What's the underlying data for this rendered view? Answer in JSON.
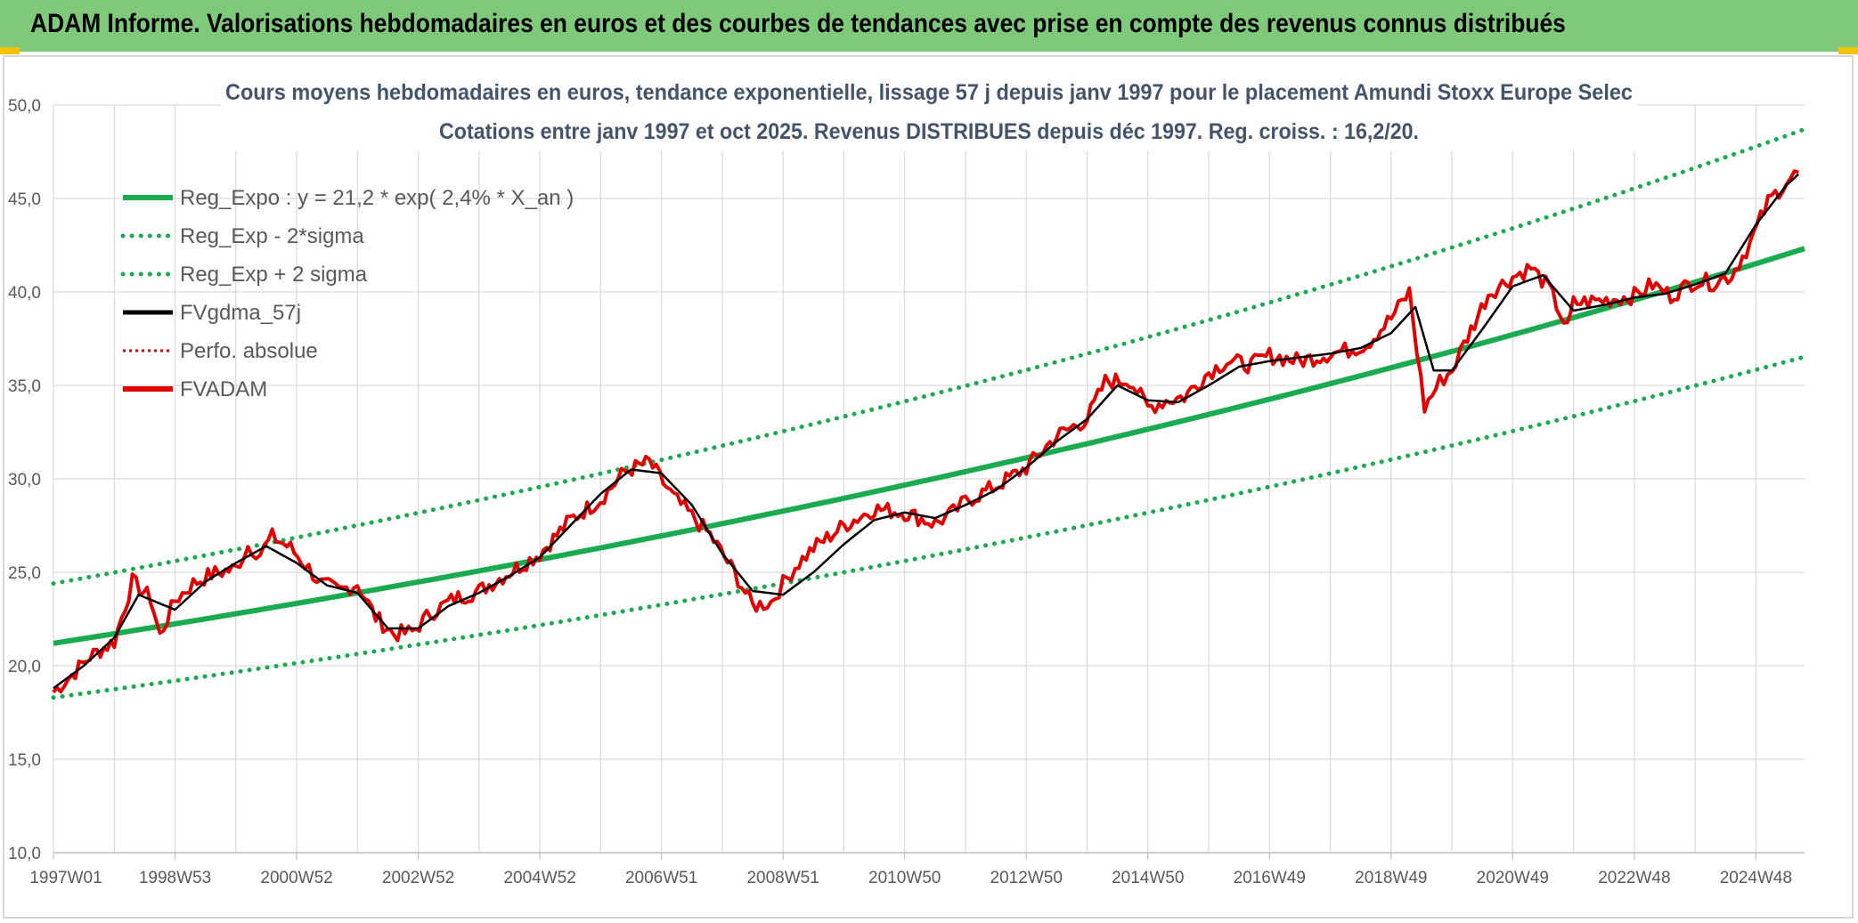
{
  "header": {
    "title": "ADAM Informe. Valorisations hebdomadaires en euros et des courbes de tendances avec prise en compte des revenus connus distribués"
  },
  "colors": {
    "header_bg": "#7ec97a",
    "reg_expo": "#1aaa50",
    "sigma": "#1aaa50",
    "fvgdma": "#000000",
    "perfo": "#e00000",
    "fvadam": "#e00000",
    "grid": "#d9d9d9",
    "title": "#44546a",
    "axis_text": "#595959"
  },
  "chart_data": {
    "type": "line",
    "title": "Cours moyens hebdomadaires en euros, tendance exponentielle, lissage 57 j depuis janv 1997 pour le placement Amundi Stoxx Europe Selec",
    "subtitle": "Cotations entre janv 1997 et oct 2025. Revenus DISTRIBUES depuis déc 1997. Reg. croiss. : 16,2/20.",
    "xlabel": "",
    "ylabel": "",
    "xlim": [
      1997.0,
      2025.8
    ],
    "ylim": [
      10,
      50
    ],
    "yticks": [
      10,
      15,
      20,
      25,
      30,
      35,
      40,
      45,
      50
    ],
    "ytick_labels": [
      "10,0",
      "15,0",
      "20,0",
      "25,0",
      "30,0",
      "35,0",
      "40,0",
      "45,0",
      "50,0"
    ],
    "xticks": [
      1997.0,
      1999.0,
      2001.0,
      2003.0,
      2005.0,
      2007.0,
      2009.0,
      2011.0,
      2013.0,
      2015.0,
      2017.0,
      2019.0,
      2021.0,
      2023.0,
      2025.0
    ],
    "xtick_labels": [
      "1997W01",
      "1998W53",
      "2000W52",
      "2002W52",
      "2004W52",
      "2006W51",
      "2008W51",
      "2010W50",
      "2012W50",
      "2014W50",
      "2016W49",
      "2018W49",
      "2020W49",
      "2022W48",
      "2024W48"
    ],
    "legend_position": "top-left",
    "legend": [
      {
        "label": "Reg_Expo : y = 21,2 * exp( 2,4% *  X_an )",
        "style": "solid",
        "color_key": "reg_expo"
      },
      {
        "label": "Reg_Exp - 2*sigma",
        "style": "dotted",
        "color_key": "sigma"
      },
      {
        "label": "Reg_Exp + 2 sigma",
        "style": "dotted",
        "color_key": "sigma"
      },
      {
        "label": "FVgdma_57j",
        "style": "thin",
        "color_key": "fvgdma"
      },
      {
        "label": "Perfo. absolue",
        "style": "dotted-thin",
        "color_key": "perfo"
      },
      {
        "label": "FVADAM",
        "style": "solid",
        "color_key": "fvadam"
      }
    ],
    "series": [
      {
        "name": "Reg_Expo",
        "x": [
          1997.0,
          2025.8
        ],
        "base": 21.2,
        "rate": 0.024
      },
      {
        "name": "Reg_Exp - 2*sigma",
        "x": [
          1997.0,
          2025.8
        ],
        "base": 18.3,
        "rate": 0.024
      },
      {
        "name": "Reg_Exp + 2 sigma",
        "x": [
          1997.0,
          2025.8
        ],
        "base": 24.4,
        "rate": 0.024
      },
      {
        "name": "FVADAM",
        "x": [
          1997.0,
          1997.3,
          1997.6,
          1998.0,
          1998.3,
          1998.6,
          1998.75,
          1999.0,
          1999.3,
          1999.6,
          2000.0,
          2000.2,
          2000.4,
          2000.6,
          2000.9,
          2001.2,
          2001.4,
          2001.7,
          2002.0,
          2002.3,
          2002.6,
          2002.9,
          2003.2,
          2003.6,
          2004.0,
          2004.5,
          2005.0,
          2005.5,
          2006.0,
          2006.4,
          2006.8,
          2007.2,
          2007.5,
          2007.8,
          2008.2,
          2008.5,
          2008.8,
          2009.0,
          2009.2,
          2009.5,
          2010.0,
          2010.5,
          2011.0,
          2011.5,
          2011.8,
          2012.0,
          2012.5,
          2013.0,
          2013.5,
          2014.0,
          2014.3,
          2014.7,
          2015.0,
          2015.3,
          2015.6,
          2016.0,
          2016.3,
          2016.7,
          2017.0,
          2017.5,
          2018.0,
          2018.3,
          2018.6,
          2019.0,
          2019.3,
          2019.55,
          2019.8,
          2020.0,
          2020.2,
          2020.6,
          2021.0,
          2021.3,
          2021.6,
          2021.9,
          2022.0,
          2022.3,
          2022.6,
          2023.0,
          2023.3,
          2023.6,
          2024.0,
          2024.3,
          2024.6,
          2024.9,
          2025.2,
          2025.5,
          2025.7
        ],
        "values": [
          18.6,
          19.5,
          20.5,
          21.3,
          24.5,
          23.6,
          21.6,
          23.5,
          24.4,
          24.9,
          25.2,
          26.4,
          26.0,
          26.9,
          26.3,
          25.2,
          24.4,
          24.0,
          24.4,
          22.6,
          21.7,
          21.8,
          22.8,
          23.6,
          24.0,
          25.0,
          26.0,
          27.8,
          28.9,
          30.4,
          30.9,
          29.0,
          28.0,
          27.0,
          25.0,
          23.2,
          23.4,
          24.4,
          25.3,
          26.3,
          27.5,
          28.4,
          28.2,
          27.6,
          28.2,
          28.8,
          29.6,
          30.6,
          32.3,
          33.2,
          35.2,
          35.3,
          33.8,
          34.2,
          34.4,
          35.7,
          36.3,
          36.1,
          36.6,
          36.3,
          36.7,
          36.9,
          37.2,
          38.6,
          40.0,
          33.8,
          35.2,
          35.8,
          37.2,
          39.9,
          40.8,
          41.3,
          40.2,
          38.0,
          39.4,
          39.5,
          39.6,
          39.8,
          40.4,
          39.8,
          40.6,
          40.5,
          40.9,
          42.6,
          44.8,
          45.9,
          46.4
        ]
      },
      {
        "name": "FVgdma_57j",
        "x": [
          1997.0,
          1997.5,
          1998.0,
          1998.4,
          1998.7,
          1999.0,
          1999.5,
          2000.0,
          2000.5,
          2001.0,
          2001.5,
          2002.0,
          2002.5,
          2003.0,
          2003.5,
          2004.0,
          2004.5,
          2005.0,
          2005.5,
          2006.0,
          2006.5,
          2007.0,
          2007.5,
          2008.0,
          2008.5,
          2009.0,
          2009.5,
          2010.0,
          2010.5,
          2011.0,
          2011.5,
          2012.0,
          2012.5,
          2013.0,
          2013.5,
          2014.0,
          2014.5,
          2015.0,
          2015.5,
          2016.0,
          2016.5,
          2017.0,
          2017.5,
          2018.0,
          2018.5,
          2019.0,
          2019.4,
          2019.7,
          2020.0,
          2020.5,
          2021.0,
          2021.5,
          2022.0,
          2022.5,
          2023.0,
          2023.5,
          2024.0,
          2024.5,
          2025.0,
          2025.5,
          2025.7
        ],
        "values": [
          18.8,
          20.0,
          21.5,
          23.8,
          23.4,
          23.0,
          24.5,
          25.5,
          26.4,
          25.5,
          24.3,
          23.9,
          22.0,
          22.0,
          23.2,
          23.9,
          24.8,
          25.8,
          27.5,
          29.2,
          30.5,
          30.3,
          28.6,
          26.0,
          24.0,
          23.8,
          25.0,
          26.5,
          27.8,
          28.2,
          27.9,
          28.6,
          29.4,
          30.6,
          32.0,
          33.2,
          35.0,
          34.2,
          34.1,
          35.0,
          36.0,
          36.3,
          36.5,
          36.7,
          37.0,
          37.8,
          39.2,
          35.8,
          35.8,
          38.0,
          40.3,
          40.9,
          39.0,
          39.3,
          39.7,
          39.9,
          40.4,
          41.0,
          43.6,
          45.7,
          46.3
        ]
      }
    ]
  }
}
